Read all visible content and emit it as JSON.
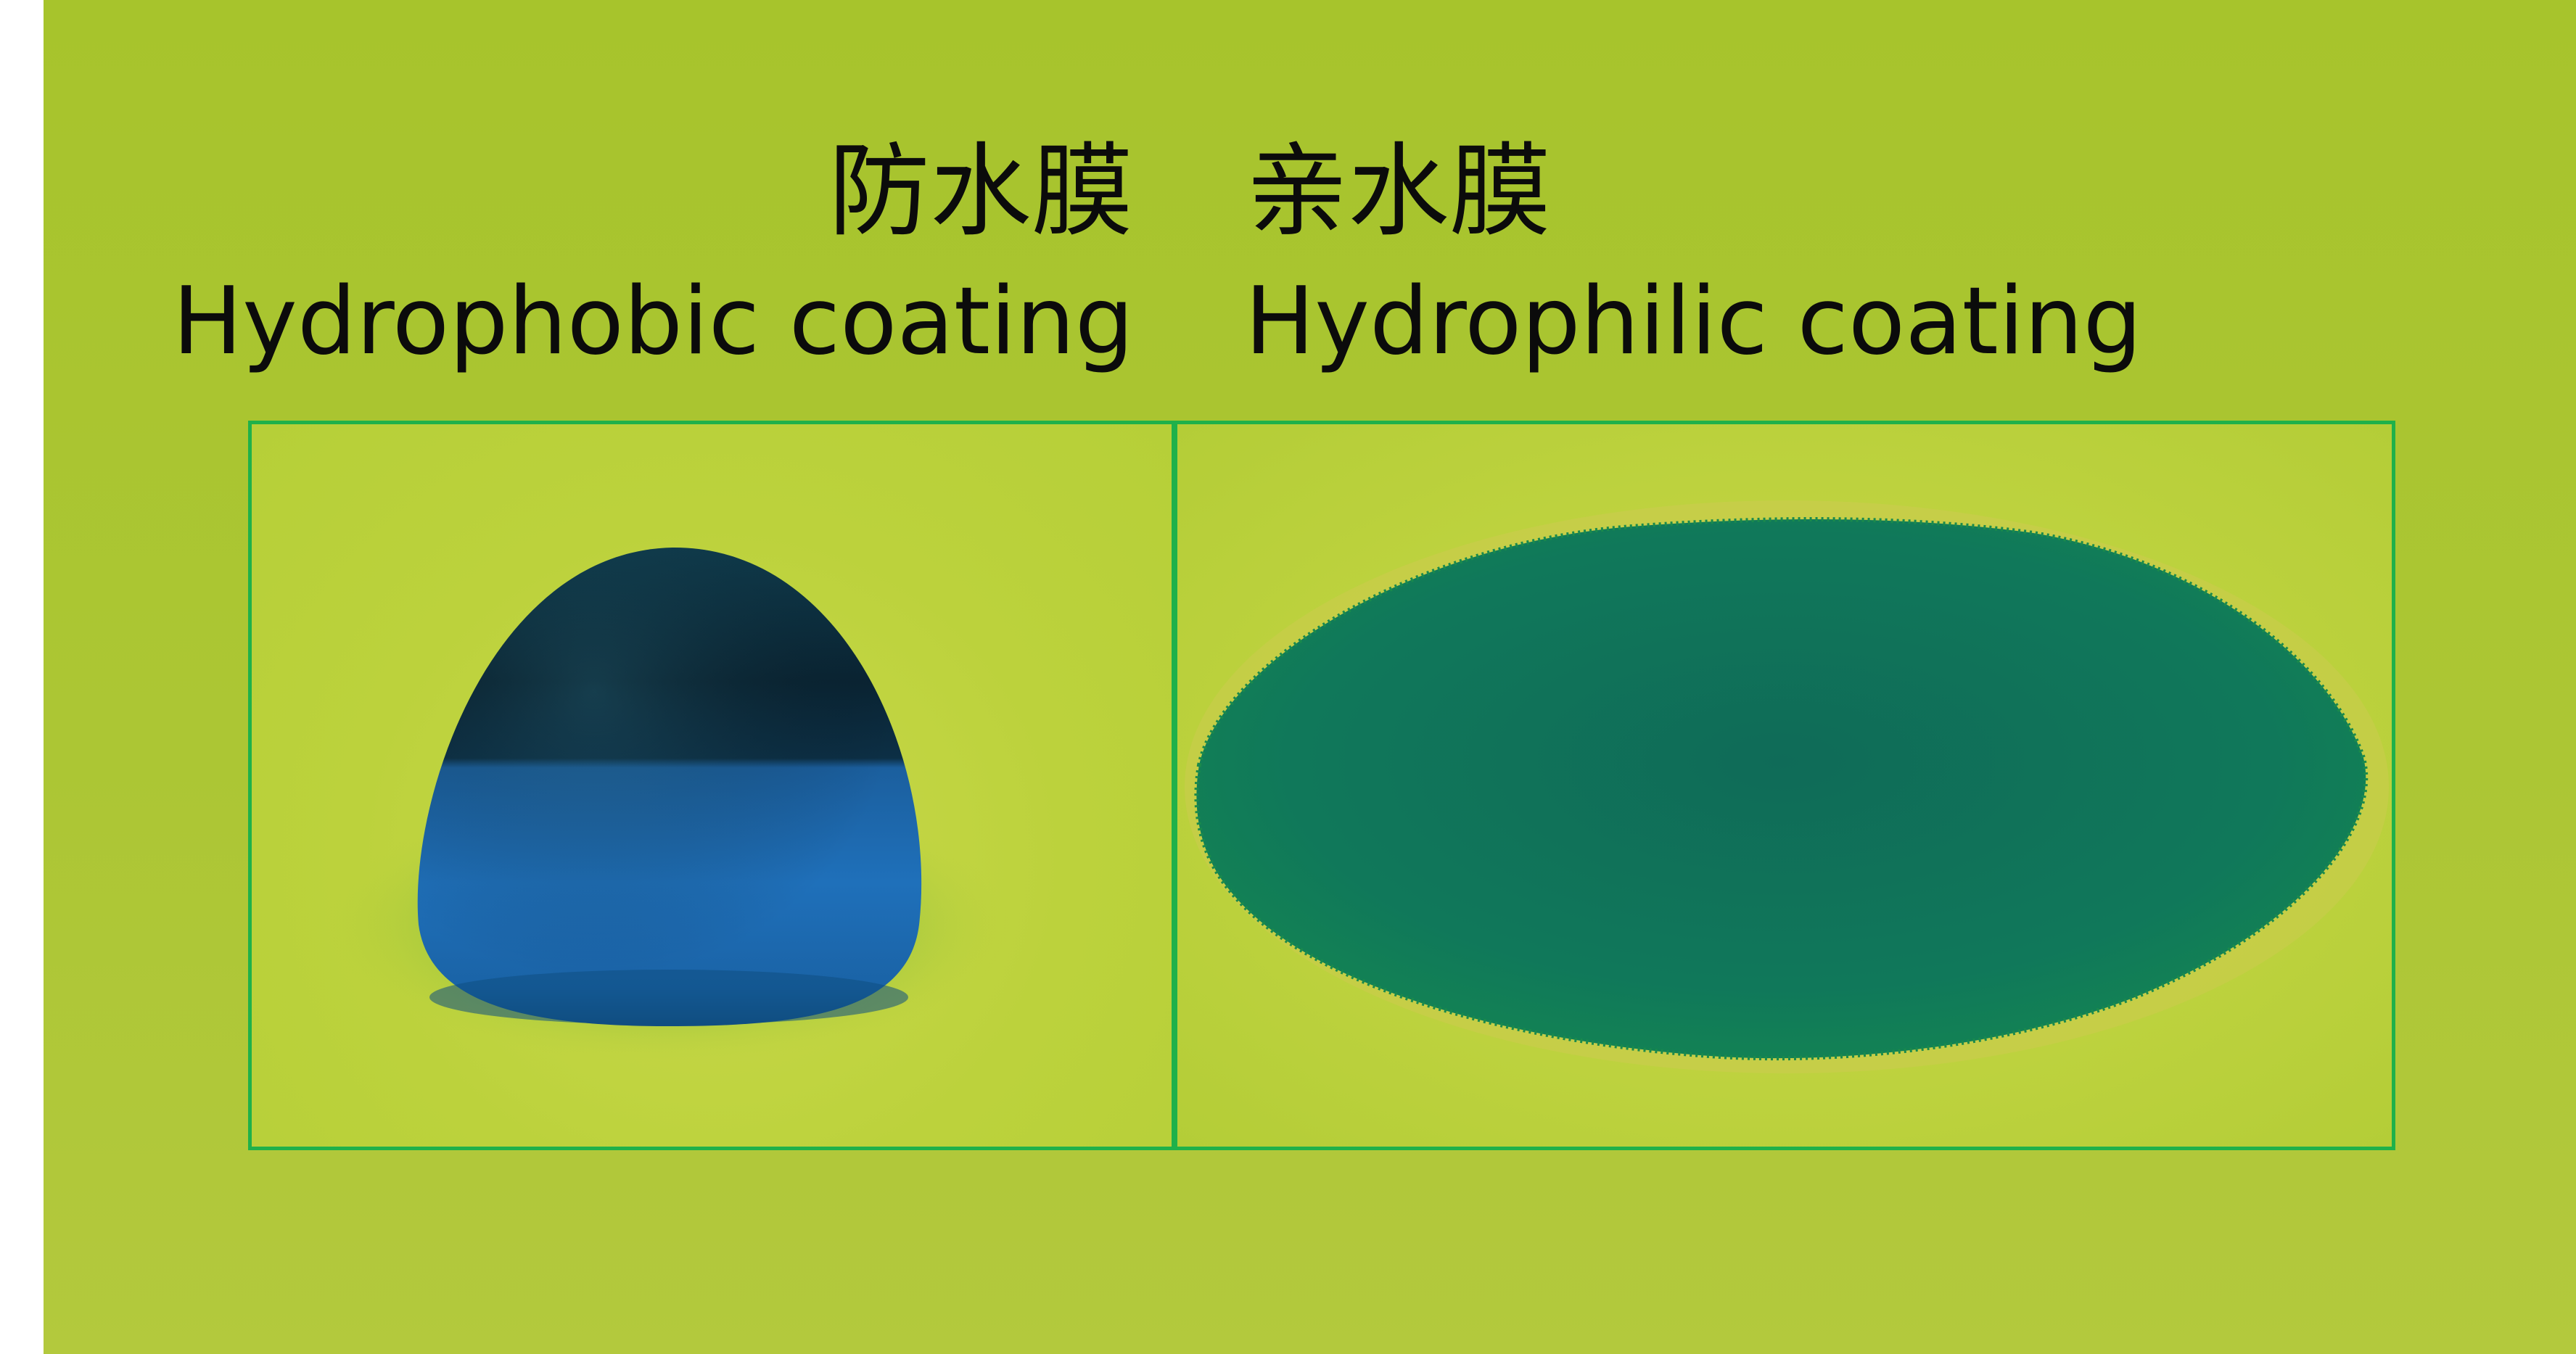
{
  "labels": {
    "hydrophobic_cn": "防水膜",
    "hydrophobic_en": "Hydrophobic coating",
    "hydrophilic_cn": "亲水膜",
    "hydrophilic_en": "Hydrophilic coating"
  },
  "colors": {
    "background": "#a9c52f",
    "panel_border": "#1fb14a",
    "droplet_dark": "#0b2a3c",
    "droplet_blue": "#1e6fb8",
    "spread_water": "#0e7d55",
    "text": "#0b0b0b"
  }
}
